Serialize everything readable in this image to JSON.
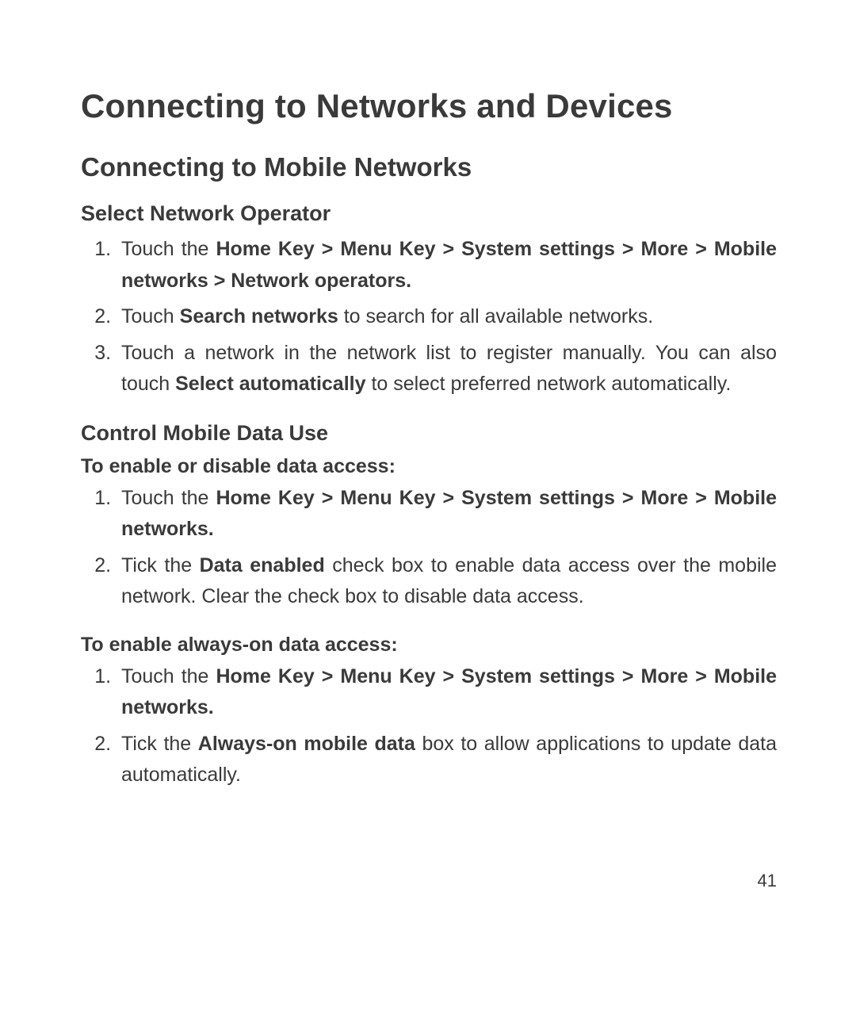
{
  "page": {
    "number": "41",
    "text_color": "#3a3a3a",
    "background_color": "#ffffff",
    "font_family": "Arial"
  },
  "h1": "Connecting to Networks and Devices",
  "h2": "Connecting to Mobile Networks",
  "section1": {
    "title": "Select Network Operator",
    "items": [
      {
        "pre": "Touch the ",
        "bold": "Home Key > Menu Key > System settings > More > Mobile networks > Network operators.",
        "post": ""
      },
      {
        "pre": "Touch ",
        "bold": "Search networks",
        "post": " to search for all available networks."
      },
      {
        "pre": "Touch a network in the network list to register manually. You can also touch ",
        "bold": "Select automatically",
        "post": " to select preferred network automatically."
      }
    ]
  },
  "section2": {
    "title": "Control Mobile Data Use",
    "lead1": "To enable or disable data access:",
    "list1": [
      {
        "pre": "Touch the ",
        "bold": "Home Key > Menu Key > System settings > More > Mobile networks.",
        "post": ""
      },
      {
        "pre": "Tick the ",
        "bold": "Data enabled",
        "post": " check box to enable data access over the mobile network. Clear the check box to disable data access."
      }
    ],
    "lead2": "To enable always-on data access:",
    "list2": [
      {
        "pre": "Touch the ",
        "bold": "Home Key > Menu Key > System settings > More > Mobile networks.",
        "post": ""
      },
      {
        "pre": "Tick the ",
        "bold": "Always-on mobile data",
        "post": " box to allow applications to update data automatically."
      }
    ]
  }
}
